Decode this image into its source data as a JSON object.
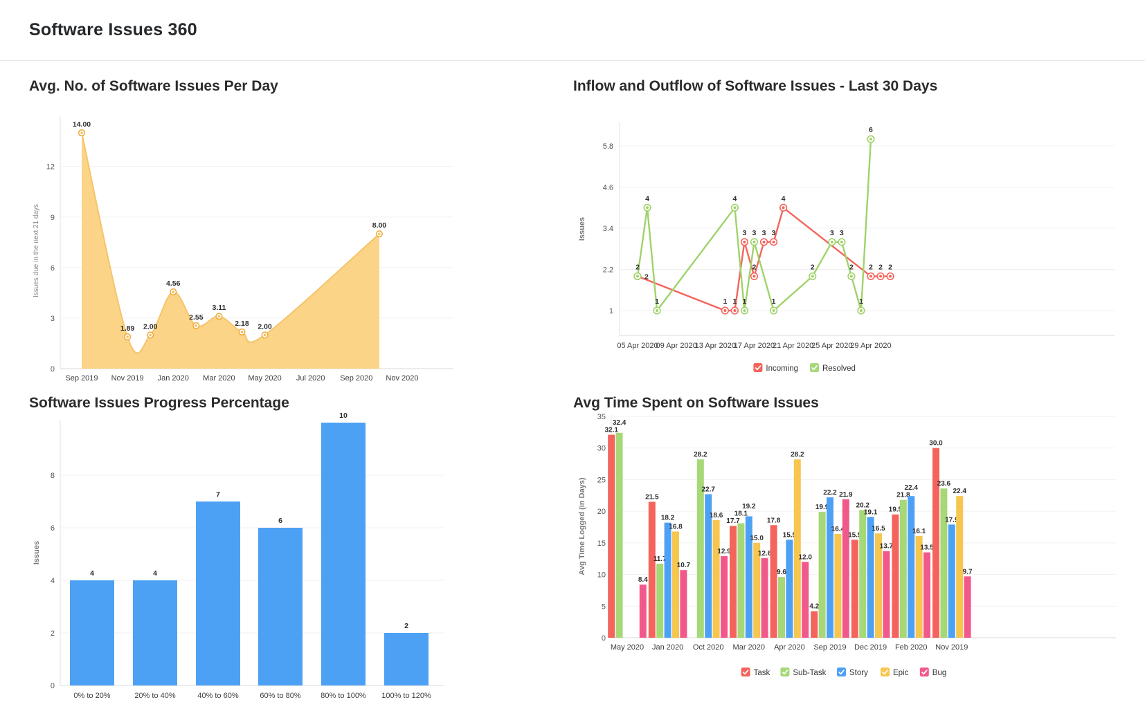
{
  "page": {
    "title": "Software Issues 360"
  },
  "legend": {
    "inflow_outflow": [
      {
        "name": "Incoming",
        "color": "#F4645C"
      },
      {
        "name": "Resolved",
        "color": "#A6D878"
      }
    ],
    "avg_time": [
      {
        "name": "Task",
        "color": "#F4645C"
      },
      {
        "name": "Sub-Task",
        "color": "#A6D878"
      },
      {
        "name": "Story",
        "color": "#4DA1F5"
      },
      {
        "name": "Epic",
        "color": "#F7C64F"
      },
      {
        "name": "Bug",
        "color": "#F2598B"
      }
    ]
  },
  "chart_data": [
    {
      "id": "avg-issues-per-day",
      "type": "area",
      "title": "Avg. No. of Software Issues Per Day",
      "ylabel": "Issues due in the next 21 days",
      "y_ticks": [
        0,
        3,
        6,
        9,
        12
      ],
      "ylim": [
        0,
        14
      ],
      "x_tick_labels": [
        "Sep 2019",
        "Nov 2019",
        "Jan 2020",
        "Mar 2020",
        "May 2020",
        "Jul 2020",
        "Sep 2020",
        "Nov 2020"
      ],
      "x_tick_months": [
        0,
        2,
        4,
        6,
        8,
        10,
        12,
        14
      ],
      "point_months": [
        0,
        2,
        3,
        4,
        5,
        6,
        7,
        8,
        13
      ],
      "point_month_names": [
        "Sep 2019",
        "Nov 2019",
        "Dec 2019",
        "Jan 2020",
        "Feb 2020",
        "Mar 2020",
        "Apr 2020",
        "May 2020",
        "Oct 2020"
      ],
      "values": [
        14.0,
        1.89,
        2.0,
        4.56,
        2.55,
        3.11,
        2.18,
        2.0,
        8.0
      ],
      "colors": {
        "fill": "#FBD487",
        "line": "#F5C469",
        "marker_ring": "#EFA937",
        "marker_dot": "#F5BE5E"
      },
      "grid": true
    },
    {
      "id": "inflow-outflow",
      "type": "line",
      "title": "Inflow and Outflow of Software Issues - Last 30 Days",
      "ylabel": "Issues",
      "y_ticks": [
        1,
        2.2,
        3.4,
        4.6,
        5.8
      ],
      "x_tick_labels": [
        "05 Apr 2020",
        "09 Apr 2020",
        "13 Apr 2020",
        "17 Apr 2020",
        "21 Apr 2020",
        "25 Apr 2020",
        "29 Apr 2020"
      ],
      "x_tick_days": [
        0,
        4,
        8,
        12,
        16,
        20,
        24
      ],
      "series": [
        {
          "name": "Incoming",
          "color": "#F4645C",
          "days": [
            0,
            9,
            10,
            11,
            12,
            13,
            14,
            15,
            24,
            25,
            26
          ],
          "values": [
            2,
            1,
            1,
            3,
            2,
            3,
            3,
            4,
            2,
            2,
            2
          ]
        },
        {
          "name": "Resolved",
          "color": "#9FD36A",
          "days": [
            0,
            1,
            2,
            10,
            11,
            12,
            14,
            18,
            20,
            21,
            22,
            23,
            24
          ],
          "values": [
            2,
            4,
            1,
            4,
            1,
            3,
            1,
            2,
            3,
            3,
            2,
            1,
            6
          ]
        }
      ],
      "legend_position": "bottom",
      "grid": true
    },
    {
      "id": "progress-percentage",
      "type": "bar",
      "title": "Software Issues Progress Percentage",
      "ylabel": "Issues",
      "categories": [
        "0% to 20%",
        "20% to 40%",
        "40% to 60%",
        "60% to 80%",
        "80% to 100%",
        "100% to 120%"
      ],
      "values": [
        4,
        4,
        7,
        6,
        10,
        2
      ],
      "y_ticks": [
        0,
        2,
        4,
        6,
        8
      ],
      "ylim": [
        0,
        10
      ],
      "bar_color": "#4DA1F5",
      "grid": true
    },
    {
      "id": "avg-time-spent",
      "type": "grouped-bar",
      "title": "Avg Time Spent on Software Issues",
      "ylabel": "Avg Time Logged (in Days)",
      "categories": [
        "May 2020",
        "Jan 2020",
        "Oct 2020",
        "Mar 2020",
        "Apr 2020",
        "Sep 2019",
        "Dec 2019",
        "Feb 2020",
        "Nov 2019"
      ],
      "y_ticks": [
        0,
        5,
        10,
        15,
        20,
        25,
        30,
        35
      ],
      "ylim": [
        0,
        35
      ],
      "series": [
        {
          "name": "Task",
          "color": "#F4645C",
          "values": [
            32.1,
            21.5,
            null,
            17.7,
            17.8,
            4.2,
            15.5,
            19.5,
            30.0
          ]
        },
        {
          "name": "Sub-Task",
          "color": "#A6D878",
          "values": [
            32.4,
            11.7,
            28.2,
            18.1,
            9.6,
            19.9,
            20.2,
            21.8,
            23.6
          ]
        },
        {
          "name": "Story",
          "color": "#4DA1F5",
          "values": [
            null,
            18.2,
            22.7,
            19.2,
            15.5,
            22.2,
            19.1,
            22.4,
            17.9
          ]
        },
        {
          "name": "Epic",
          "color": "#F7C64F",
          "values": [
            null,
            16.8,
            18.6,
            15.0,
            28.2,
            16.4,
            16.5,
            16.1,
            22.4
          ]
        },
        {
          "name": "Bug",
          "color": "#F2598B",
          "values": [
            8.4,
            10.7,
            12.9,
            12.6,
            12.0,
            21.9,
            13.7,
            13.5,
            9.7
          ]
        }
      ],
      "legend_position": "bottom",
      "grid": true
    }
  ]
}
